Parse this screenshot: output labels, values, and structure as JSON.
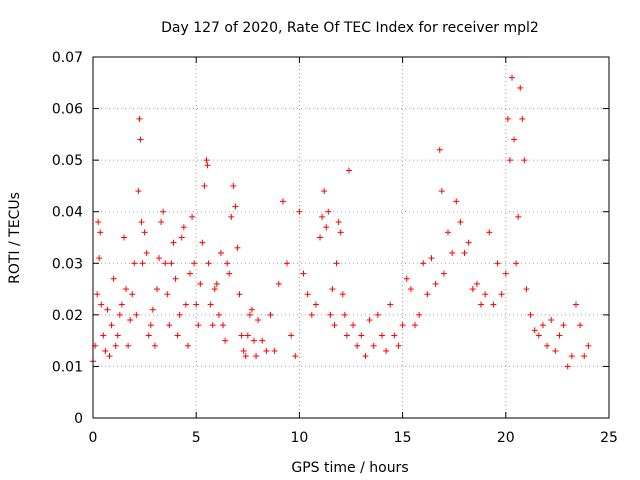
{
  "chart_data": {
    "type": "scatter",
    "title": "Day 127 of 2020, Rate Of TEC Index for receiver mpl2",
    "xlabel": "GPS time / hours",
    "ylabel": "ROTI / TECUs",
    "xlim": [
      0,
      25
    ],
    "ylim": [
      0,
      0.07
    ],
    "x_ticks": [
      "0",
      "5",
      "10",
      "15",
      "20",
      "25"
    ],
    "y_ticks": [
      "0",
      "0.01",
      "0.02",
      "0.03",
      "0.04",
      "0.05",
      "0.06",
      "0.07"
    ],
    "grid": true,
    "legend": "none",
    "marker": "plus",
    "color": "#ff0000",
    "series": [
      {
        "x": [
          0.0,
          0.1,
          0.2,
          0.25,
          0.3,
          0.35,
          0.4,
          0.5,
          0.6,
          0.7,
          0.8,
          0.9,
          1.0,
          1.1,
          1.2,
          1.3,
          1.4,
          1.5,
          1.6,
          1.7,
          1.8,
          1.9,
          2.0,
          2.1,
          2.2,
          2.25,
          2.3,
          2.35,
          2.4,
          2.5,
          2.6,
          2.7,
          2.8,
          2.9,
          3.0,
          3.1,
          3.2,
          3.3,
          3.4,
          3.5,
          3.6,
          3.7,
          3.8,
          3.9,
          4.0,
          4.1,
          4.2,
          4.3,
          4.4,
          4.5,
          4.6,
          4.7,
          4.8,
          4.9,
          5.0,
          5.1,
          5.2,
          5.3,
          5.4,
          5.5,
          5.55,
          5.6,
          5.7,
          5.8,
          5.9,
          6.0,
          6.1,
          6.2,
          6.3,
          6.4,
          6.5,
          6.6,
          6.7,
          6.8,
          6.9,
          7.0,
          7.1,
          7.2,
          7.3,
          7.4,
          7.5,
          7.6,
          7.7,
          7.8,
          7.9,
          8.0,
          8.2,
          8.4,
          8.6,
          8.8,
          9.0,
          9.2,
          9.4,
          9.6,
          9.8,
          10.0,
          10.2,
          10.4,
          10.6,
          10.8,
          11.0,
          11.1,
          11.2,
          11.3,
          11.4,
          11.5,
          11.6,
          11.7,
          11.8,
          11.9,
          12.0,
          12.1,
          12.2,
          12.3,
          12.4,
          12.6,
          12.8,
          13.0,
          13.2,
          13.4,
          13.6,
          13.8,
          14.0,
          14.2,
          14.4,
          14.6,
          14.8,
          15.0,
          15.2,
          15.4,
          15.6,
          15.8,
          16.0,
          16.2,
          16.4,
          16.6,
          16.8,
          16.9,
          17.0,
          17.2,
          17.4,
          17.6,
          17.8,
          18.0,
          18.2,
          18.4,
          18.6,
          18.8,
          19.0,
          19.2,
          19.4,
          19.6,
          19.8,
          20.0,
          20.1,
          20.2,
          20.3,
          20.4,
          20.5,
          20.6,
          20.7,
          20.8,
          20.9,
          21.0,
          21.2,
          21.4,
          21.6,
          21.8,
          22.0,
          22.2,
          22.4,
          22.6,
          22.8,
          23.0,
          23.2,
          23.4,
          23.6,
          23.8,
          24.0
        ],
        "y": [
          0.011,
          0.014,
          0.024,
          0.038,
          0.031,
          0.036,
          0.022,
          0.016,
          0.013,
          0.021,
          0.012,
          0.018,
          0.027,
          0.014,
          0.016,
          0.02,
          0.022,
          0.035,
          0.025,
          0.014,
          0.019,
          0.024,
          0.03,
          0.02,
          0.044,
          0.058,
          0.054,
          0.038,
          0.03,
          0.036,
          0.032,
          0.016,
          0.018,
          0.021,
          0.014,
          0.025,
          0.031,
          0.038,
          0.04,
          0.03,
          0.024,
          0.018,
          0.03,
          0.034,
          0.027,
          0.016,
          0.02,
          0.035,
          0.037,
          0.022,
          0.014,
          0.028,
          0.039,
          0.03,
          0.022,
          0.018,
          0.026,
          0.034,
          0.045,
          0.05,
          0.049,
          0.03,
          0.022,
          0.018,
          0.025,
          0.026,
          0.02,
          0.032,
          0.018,
          0.015,
          0.03,
          0.028,
          0.039,
          0.045,
          0.041,
          0.033,
          0.024,
          0.016,
          0.013,
          0.012,
          0.016,
          0.02,
          0.021,
          0.015,
          0.012,
          0.019,
          0.015,
          0.013,
          0.02,
          0.013,
          0.026,
          0.042,
          0.03,
          0.016,
          0.012,
          0.04,
          0.028,
          0.024,
          0.02,
          0.022,
          0.035,
          0.039,
          0.044,
          0.037,
          0.04,
          0.02,
          0.025,
          0.018,
          0.03,
          0.038,
          0.036,
          0.024,
          0.02,
          0.016,
          0.048,
          0.018,
          0.014,
          0.016,
          0.012,
          0.019,
          0.014,
          0.02,
          0.016,
          0.013,
          0.022,
          0.016,
          0.014,
          0.018,
          0.027,
          0.025,
          0.018,
          0.02,
          0.03,
          0.024,
          0.031,
          0.026,
          0.052,
          0.044,
          0.028,
          0.036,
          0.032,
          0.042,
          0.038,
          0.032,
          0.034,
          0.025,
          0.026,
          0.022,
          0.024,
          0.036,
          0.022,
          0.03,
          0.024,
          0.028,
          0.058,
          0.05,
          0.066,
          0.054,
          0.03,
          0.039,
          0.064,
          0.058,
          0.05,
          0.025,
          0.02,
          0.017,
          0.016,
          0.018,
          0.014,
          0.019,
          0.013,
          0.016,
          0.018,
          0.01,
          0.012,
          0.022,
          0.018,
          0.012,
          0.014
        ]
      }
    ]
  }
}
